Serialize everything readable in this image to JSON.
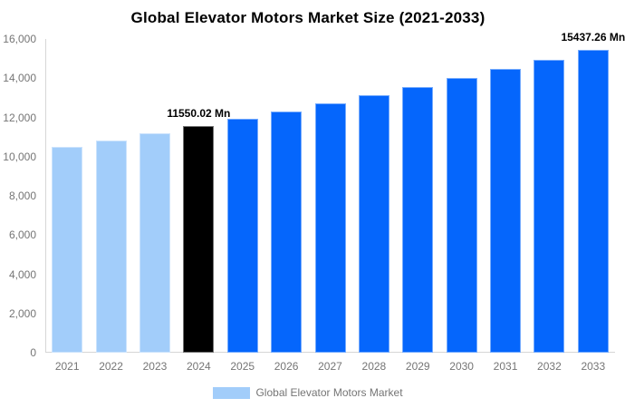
{
  "page": {
    "background": "#ffffff"
  },
  "chart_data": {
    "type": "bar",
    "title": "Global Elevator Motors Market Size (2021-2033)",
    "categories": [
      "2021",
      "2022",
      "2023",
      "2024",
      "2025",
      "2026",
      "2027",
      "2028",
      "2029",
      "2030",
      "2031",
      "2032",
      "2033"
    ],
    "values": [
      10485.04,
      10828.66,
      11183.54,
      11550.02,
      11928.52,
      12319.42,
      12723.13,
      13140.06,
      13570.66,
      14015.37,
      14474.66,
      14949.0,
      15437.26
    ],
    "color_keys": [
      "past",
      "past",
      "past",
      "current",
      "forecast",
      "forecast",
      "forecast",
      "forecast",
      "forecast",
      "forecast",
      "forecast",
      "forecast",
      "forecast"
    ],
    "colors": {
      "past": "#A2CDFA",
      "current": "#000000",
      "forecast": "#0566FC"
    },
    "annotations": [
      {
        "category": "2024",
        "text": "11550.02 Mn"
      },
      {
        "category": "2033",
        "text": "15437.26 Mn"
      }
    ],
    "xlabel": "",
    "ylabel": "",
    "ylim": [
      0,
      16000
    ],
    "y_ticks": [
      "0",
      "2,000",
      "4,000",
      "6,000",
      "8,000",
      "10,000",
      "12,000",
      "14,000",
      "16,000"
    ],
    "grid": false,
    "axis_color": "#D6D6D6",
    "tick_text_color": "#757575",
    "legend": {
      "position": "bottom",
      "items": [
        {
          "label": "Global Elevator Motors Market",
          "swatch_color_key": "past"
        }
      ]
    }
  }
}
